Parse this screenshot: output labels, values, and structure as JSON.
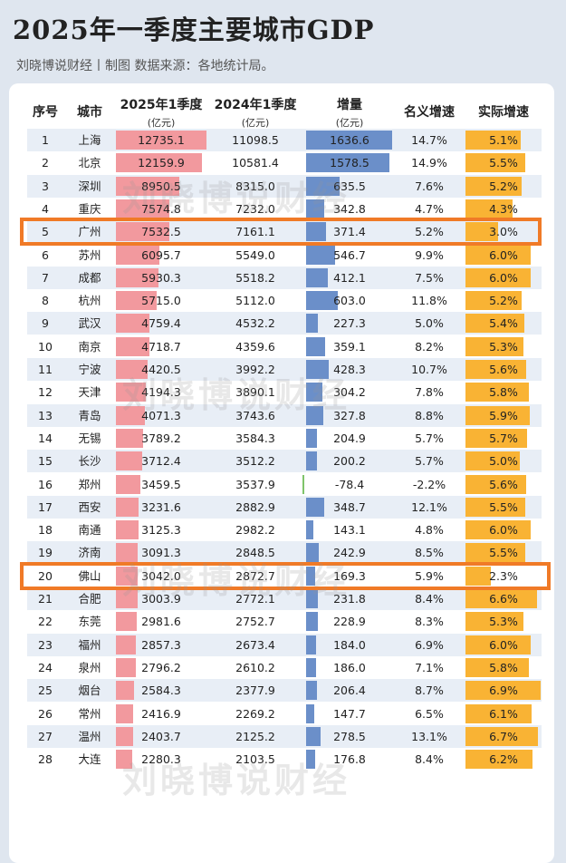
{
  "title": "2025年一季度主要城市GDP",
  "subtitle": "刘晓博说财经丨制图   数据来源：各地统计局。",
  "watermark": "刘晓博说财经",
  "colors": {
    "gdp2025": "#f2999e",
    "increase": "#6b8fc9",
    "real": "#f9b334",
    "highlight": "#f07a27"
  },
  "chart_data": {
    "type": "table",
    "title": "2025年一季度主要城市GDP",
    "columns": [
      {
        "key": "rank",
        "label": "序号",
        "unit": ""
      },
      {
        "key": "city",
        "label": "城市",
        "unit": ""
      },
      {
        "key": "gdp2025",
        "label": "2025年1季度",
        "unit": "(亿元)"
      },
      {
        "key": "gdp2024",
        "label": "2024年1季度",
        "unit": "(亿元)"
      },
      {
        "key": "increase",
        "label": "增量",
        "unit": "(亿元)"
      },
      {
        "key": "nominal",
        "label": "名义增速",
        "unit": ""
      },
      {
        "key": "real",
        "label": "实际增速",
        "unit": ""
      }
    ],
    "highlighted_ranks": [
      5,
      20
    ],
    "rows": [
      {
        "rank": "1",
        "city": "上海",
        "gdp2025": "12735.1",
        "gdp2024": "11098.5",
        "increase": "1636.6",
        "nominal": "14.7%",
        "real": "5.1%"
      },
      {
        "rank": "2",
        "city": "北京",
        "gdp2025": "12159.9",
        "gdp2024": "10581.4",
        "increase": "1578.5",
        "nominal": "14.9%",
        "real": "5.5%"
      },
      {
        "rank": "3",
        "city": "深圳",
        "gdp2025": "8950.5",
        "gdp2024": "8315.0",
        "increase": "635.5",
        "nominal": "7.6%",
        "real": "5.2%"
      },
      {
        "rank": "4",
        "city": "重庆",
        "gdp2025": "7574.8",
        "gdp2024": "7232.0",
        "increase": "342.8",
        "nominal": "4.7%",
        "real": "4.3%"
      },
      {
        "rank": "5",
        "city": "广州",
        "gdp2025": "7532.5",
        "gdp2024": "7161.1",
        "increase": "371.4",
        "nominal": "5.2%",
        "real": "3.0%"
      },
      {
        "rank": "6",
        "city": "苏州",
        "gdp2025": "6095.7",
        "gdp2024": "5549.0",
        "increase": "546.7",
        "nominal": "9.9%",
        "real": "6.0%"
      },
      {
        "rank": "7",
        "city": "成都",
        "gdp2025": "5930.3",
        "gdp2024": "5518.2",
        "increase": "412.1",
        "nominal": "7.5%",
        "real": "6.0%"
      },
      {
        "rank": "8",
        "city": "杭州",
        "gdp2025": "5715.0",
        "gdp2024": "5112.0",
        "increase": "603.0",
        "nominal": "11.8%",
        "real": "5.2%"
      },
      {
        "rank": "9",
        "city": "武汉",
        "gdp2025": "4759.4",
        "gdp2024": "4532.2",
        "increase": "227.3",
        "nominal": "5.0%",
        "real": "5.4%"
      },
      {
        "rank": "10",
        "city": "南京",
        "gdp2025": "4718.7",
        "gdp2024": "4359.6",
        "increase": "359.1",
        "nominal": "8.2%",
        "real": "5.3%"
      },
      {
        "rank": "11",
        "city": "宁波",
        "gdp2025": "4420.5",
        "gdp2024": "3992.2",
        "increase": "428.3",
        "nominal": "10.7%",
        "real": "5.6%"
      },
      {
        "rank": "12",
        "city": "天津",
        "gdp2025": "4194.3",
        "gdp2024": "3890.1",
        "increase": "304.2",
        "nominal": "7.8%",
        "real": "5.8%"
      },
      {
        "rank": "13",
        "city": "青岛",
        "gdp2025": "4071.3",
        "gdp2024": "3743.6",
        "increase": "327.8",
        "nominal": "8.8%",
        "real": "5.9%"
      },
      {
        "rank": "14",
        "city": "无锡",
        "gdp2025": "3789.2",
        "gdp2024": "3584.3",
        "increase": "204.9",
        "nominal": "5.7%",
        "real": "5.7%"
      },
      {
        "rank": "15",
        "city": "长沙",
        "gdp2025": "3712.4",
        "gdp2024": "3512.2",
        "increase": "200.2",
        "nominal": "5.7%",
        "real": "5.0%"
      },
      {
        "rank": "16",
        "city": "郑州",
        "gdp2025": "3459.5",
        "gdp2024": "3537.9",
        "increase": "-78.4",
        "nominal": "-2.2%",
        "real": "5.6%"
      },
      {
        "rank": "17",
        "city": "西安",
        "gdp2025": "3231.6",
        "gdp2024": "2882.9",
        "increase": "348.7",
        "nominal": "12.1%",
        "real": "5.5%"
      },
      {
        "rank": "18",
        "city": "南通",
        "gdp2025": "3125.3",
        "gdp2024": "2982.2",
        "increase": "143.1",
        "nominal": "4.8%",
        "real": "6.0%"
      },
      {
        "rank": "19",
        "city": "济南",
        "gdp2025": "3091.3",
        "gdp2024": "2848.5",
        "increase": "242.9",
        "nominal": "8.5%",
        "real": "5.5%"
      },
      {
        "rank": "20",
        "city": "佛山",
        "gdp2025": "3042.0",
        "gdp2024": "2872.7",
        "increase": "169.3",
        "nominal": "5.9%",
        "real": "2.3%"
      },
      {
        "rank": "21",
        "city": "合肥",
        "gdp2025": "3003.9",
        "gdp2024": "2772.1",
        "increase": "231.8",
        "nominal": "8.4%",
        "real": "6.6%"
      },
      {
        "rank": "22",
        "city": "东莞",
        "gdp2025": "2981.6",
        "gdp2024": "2752.7",
        "increase": "228.9",
        "nominal": "8.3%",
        "real": "5.3%"
      },
      {
        "rank": "23",
        "city": "福州",
        "gdp2025": "2857.3",
        "gdp2024": "2673.4",
        "increase": "184.0",
        "nominal": "6.9%",
        "real": "6.0%"
      },
      {
        "rank": "24",
        "city": "泉州",
        "gdp2025": "2796.2",
        "gdp2024": "2610.2",
        "increase": "186.0",
        "nominal": "7.1%",
        "real": "5.8%"
      },
      {
        "rank": "25",
        "city": "烟台",
        "gdp2025": "2584.3",
        "gdp2024": "2377.9",
        "increase": "206.4",
        "nominal": "8.7%",
        "real": "6.9%"
      },
      {
        "rank": "26",
        "city": "常州",
        "gdp2025": "2416.9",
        "gdp2024": "2269.2",
        "increase": "147.7",
        "nominal": "6.5%",
        "real": "6.1%"
      },
      {
        "rank": "27",
        "city": "温州",
        "gdp2025": "2403.7",
        "gdp2024": "2125.2",
        "increase": "278.5",
        "nominal": "13.1%",
        "real": "6.7%"
      },
      {
        "rank": "28",
        "city": "大连",
        "gdp2025": "2280.3",
        "gdp2024": "2103.5",
        "increase": "176.8",
        "nominal": "8.4%",
        "real": "6.2%"
      }
    ]
  }
}
